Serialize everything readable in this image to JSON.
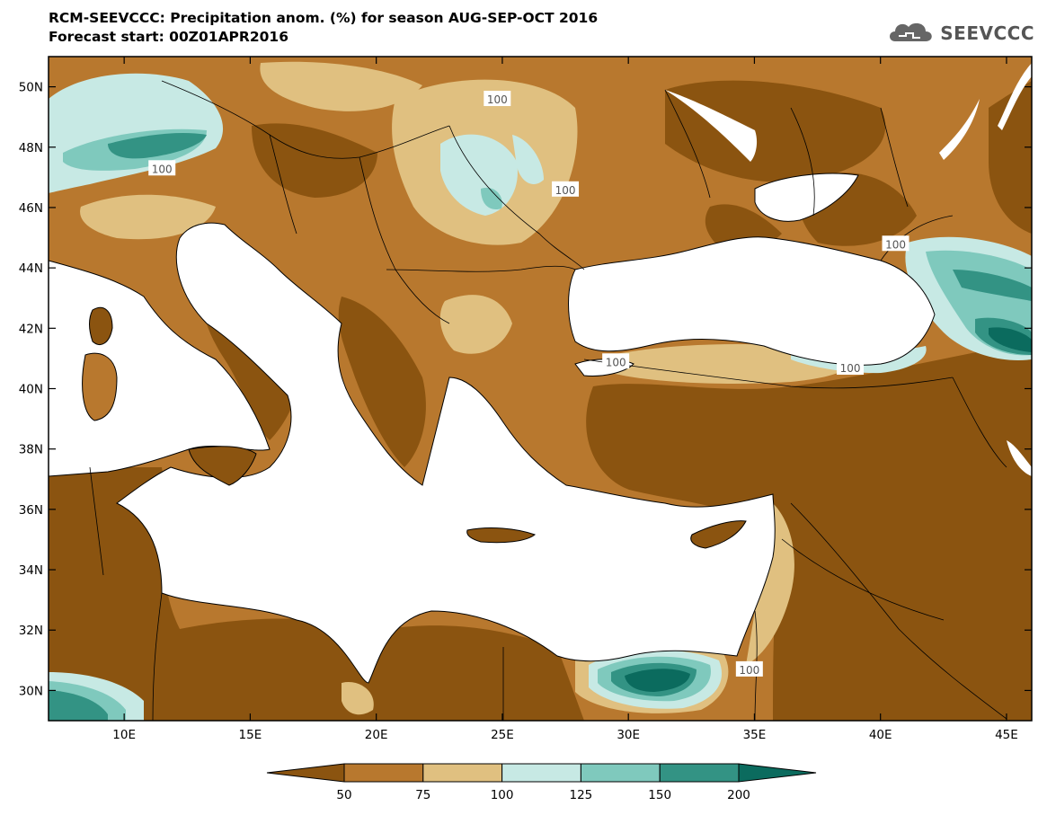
{
  "header": {
    "title": "RCM-SEEVCCC: Precipitation anom. (%) for season AUG-SEP-OCT 2016",
    "subtitle": "Forecast start: 00Z01APR2016"
  },
  "logo": {
    "text": "SEEVCCC",
    "icon": "cloud-icon"
  },
  "map": {
    "lon_range": [
      7,
      46
    ],
    "lat_range": [
      29,
      51
    ],
    "lon_ticks": [
      {
        "value": 10,
        "label": "10E"
      },
      {
        "value": 15,
        "label": "15E"
      },
      {
        "value": 20,
        "label": "20E"
      },
      {
        "value": 25,
        "label": "25E"
      },
      {
        "value": 30,
        "label": "30E"
      },
      {
        "value": 35,
        "label": "35E"
      },
      {
        "value": 40,
        "label": "40E"
      },
      {
        "value": 45,
        "label": "45E"
      }
    ],
    "lat_ticks": [
      {
        "value": 30,
        "label": "30N"
      },
      {
        "value": 32,
        "label": "32N"
      },
      {
        "value": 34,
        "label": "34N"
      },
      {
        "value": 36,
        "label": "36N"
      },
      {
        "value": 38,
        "label": "38N"
      },
      {
        "value": 40,
        "label": "40N"
      },
      {
        "value": 42,
        "label": "42N"
      },
      {
        "value": 44,
        "label": "44N"
      },
      {
        "value": 46,
        "label": "46N"
      },
      {
        "value": 48,
        "label": "48N"
      },
      {
        "value": 50,
        "label": "50N"
      }
    ],
    "contour_labels": [
      {
        "text": "100",
        "lon": 24.8,
        "lat": 49.6
      },
      {
        "text": "100",
        "lon": 11.5,
        "lat": 47.3
      },
      {
        "text": "100",
        "lon": 27.5,
        "lat": 46.6
      },
      {
        "text": "100",
        "lon": 40.6,
        "lat": 44.8
      },
      {
        "text": "100",
        "lon": 29.5,
        "lat": 40.9
      },
      {
        "text": "100",
        "lon": 38.8,
        "lat": 40.7
      },
      {
        "text": "100",
        "lon": 34.8,
        "lat": 30.7
      }
    ]
  },
  "legend": {
    "labels": [
      "50",
      "75",
      "100",
      "125",
      "150",
      "200"
    ],
    "colors": [
      "#8b5410",
      "#b8782e",
      "#e0c080",
      "#c7e9e4",
      "#7fc9bd",
      "#339384",
      "#0b6b5e"
    ]
  },
  "palette": {
    "sea": "#ffffff",
    "coast": "#000000"
  }
}
